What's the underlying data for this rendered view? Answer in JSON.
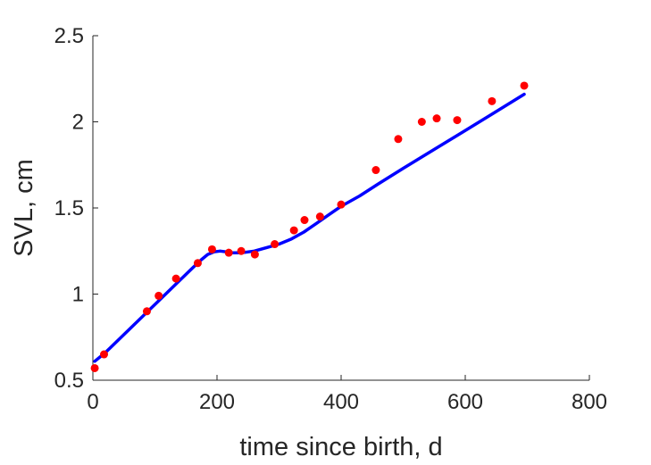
{
  "chart_data": {
    "type": "scatter",
    "title": "",
    "xlabel": "time since birth, d",
    "ylabel": "SVL, cm",
    "xlim": [
      0,
      800
    ],
    "ylim": [
      0.5,
      2.5
    ],
    "xticks": [
      0,
      200,
      400,
      600,
      800
    ],
    "yticks": [
      0.5,
      1,
      1.5,
      2,
      2.5
    ],
    "xtick_labels": [
      "0",
      "200",
      "400",
      "600",
      "800"
    ],
    "ytick_labels": [
      "0.5",
      "1",
      "1.5",
      "2",
      "2.5"
    ],
    "grid": false,
    "series": [
      {
        "kind": "scatter",
        "color": "#ff0000",
        "x": [
          3,
          18,
          87,
          106,
          134,
          169,
          192,
          219,
          239,
          261,
          293,
          324,
          341,
          366,
          400,
          456,
          492,
          530,
          554,
          587,
          643,
          695
        ],
        "y": [
          0.57,
          0.65,
          0.9,
          0.99,
          1.09,
          1.18,
          1.26,
          1.24,
          1.25,
          1.23,
          1.29,
          1.37,
          1.43,
          1.45,
          1.52,
          1.72,
          1.9,
          2.0,
          2.02,
          2.01,
          2.12,
          2.21
        ]
      },
      {
        "kind": "line",
        "color": "#0000ff",
        "x": [
          3,
          20,
          40,
          60,
          80,
          100,
          120,
          140,
          160,
          175,
          185,
          195,
          205,
          215,
          225,
          240,
          260,
          280,
          300,
          320,
          340,
          360,
          380,
          400,
          430,
          460,
          500,
          550,
          600,
          650,
          695
        ],
        "y": [
          0.61,
          0.66,
          0.73,
          0.8,
          0.87,
          0.94,
          1.01,
          1.08,
          1.15,
          1.2,
          1.23,
          1.245,
          1.25,
          1.245,
          1.24,
          1.24,
          1.25,
          1.27,
          1.29,
          1.32,
          1.36,
          1.41,
          1.46,
          1.51,
          1.57,
          1.64,
          1.73,
          1.84,
          1.95,
          2.06,
          2.16
        ]
      }
    ]
  }
}
